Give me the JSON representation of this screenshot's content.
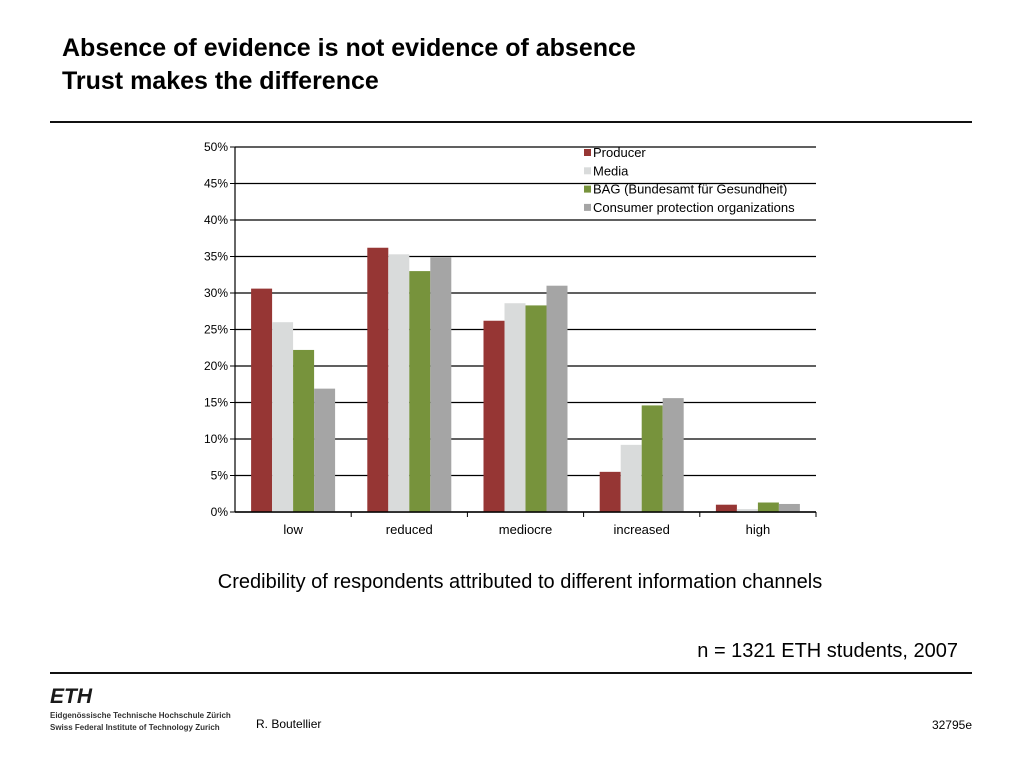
{
  "header": {
    "title_line1": "Absence of evidence is not evidence of absence",
    "title_line2": "Trust makes the difference"
  },
  "chart_data": {
    "type": "bar",
    "categories": [
      "low",
      "reduced",
      "mediocre",
      "increased",
      "high"
    ],
    "series": [
      {
        "name": "Producer",
        "color": "#963634",
        "values": [
          30.6,
          36.2,
          26.2,
          5.5,
          1.0
        ]
      },
      {
        "name": "Media",
        "color": "#d9dbdb",
        "values": [
          26.0,
          35.3,
          28.6,
          9.2,
          0.4
        ]
      },
      {
        "name": "BAG (Bundesamt für Gesundheit)",
        "color": "#77933c",
        "values": [
          22.2,
          33.0,
          28.3,
          14.6,
          1.3
        ]
      },
      {
        "name": "Consumer protection organizations",
        "color": "#a5a5a5",
        "values": [
          16.9,
          34.9,
          31.0,
          15.6,
          1.1
        ]
      }
    ],
    "yticks": [
      "0%",
      "5%",
      "10%",
      "15%",
      "20%",
      "25%",
      "30%",
      "35%",
      "40%",
      "45%",
      "50%"
    ],
    "ylim": [
      0,
      50
    ],
    "grid": true,
    "legend": "top-right",
    "xlabel": "",
    "ylabel": ""
  },
  "caption": "Credibility of respondents attributed to different information channels",
  "note": "n = 1321 ETH students, 2007",
  "footer": {
    "logo_text": "ETH",
    "institution_line1": "Eidgenössische Technische Hochschule Zürich",
    "institution_line2": "Swiss Federal Institute of Technology Zurich",
    "author": "R. Boutellier",
    "doc_id": "32795e"
  }
}
